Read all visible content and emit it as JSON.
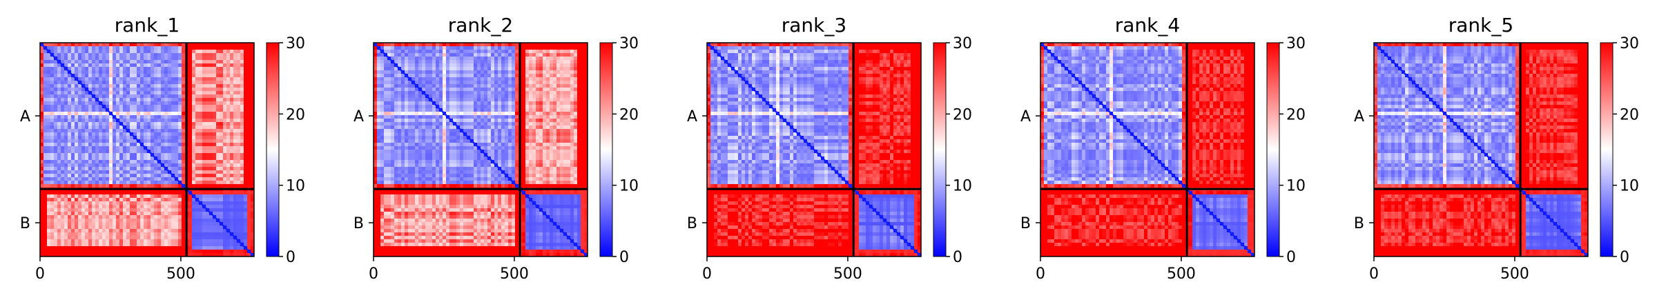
{
  "chart_data": [
    {
      "type": "heatmap",
      "title": "rank_1",
      "chains": [
        {
          "name": "A",
          "start": 0,
          "end": 520
        },
        {
          "name": "B",
          "start": 520,
          "end": 760
        }
      ],
      "x_ticks": [
        0,
        500
      ],
      "ylim": [
        0,
        760
      ],
      "colorbar": {
        "min": 0,
        "max": 30,
        "ticks": [
          0,
          10,
          20,
          30
        ],
        "colors": [
          "#0000ff",
          "#ffffff",
          "#ff0000"
        ]
      },
      "inter_chain_level": "medium"
    },
    {
      "type": "heatmap",
      "title": "rank_2",
      "chains": [
        {
          "name": "A",
          "start": 0,
          "end": 520
        },
        {
          "name": "B",
          "start": 520,
          "end": 760
        }
      ],
      "x_ticks": [
        0,
        500
      ],
      "ylim": [
        0,
        760
      ],
      "colorbar": {
        "min": 0,
        "max": 30,
        "ticks": [
          0,
          10,
          20,
          30
        ],
        "colors": [
          "#0000ff",
          "#ffffff",
          "#ff0000"
        ]
      },
      "inter_chain_level": "medium"
    },
    {
      "type": "heatmap",
      "title": "rank_3",
      "chains": [
        {
          "name": "A",
          "start": 0,
          "end": 520
        },
        {
          "name": "B",
          "start": 520,
          "end": 760
        }
      ],
      "x_ticks": [
        0,
        500
      ],
      "ylim": [
        0,
        760
      ],
      "colorbar": {
        "min": 0,
        "max": 30,
        "ticks": [
          0,
          10,
          20,
          30
        ],
        "colors": [
          "#0000ff",
          "#ffffff",
          "#ff0000"
        ]
      },
      "inter_chain_level": "high"
    },
    {
      "type": "heatmap",
      "title": "rank_4",
      "chains": [
        {
          "name": "A",
          "start": 0,
          "end": 520
        },
        {
          "name": "B",
          "start": 520,
          "end": 760
        }
      ],
      "x_ticks": [
        0,
        500
      ],
      "ylim": [
        0,
        760
      ],
      "colorbar": {
        "min": 0,
        "max": 30,
        "ticks": [
          0,
          10,
          20,
          30
        ],
        "colors": [
          "#0000ff",
          "#ffffff",
          "#ff0000"
        ]
      },
      "inter_chain_level": "high"
    },
    {
      "type": "heatmap",
      "title": "rank_5",
      "chains": [
        {
          "name": "A",
          "start": 0,
          "end": 520
        },
        {
          "name": "B",
          "start": 520,
          "end": 760
        }
      ],
      "x_ticks": [
        0,
        500
      ],
      "ylim": [
        0,
        760
      ],
      "colorbar": {
        "min": 0,
        "max": 30,
        "ticks": [
          0,
          10,
          20,
          30
        ],
        "colors": [
          "#0000ff",
          "#ffffff",
          "#ff0000"
        ]
      },
      "inter_chain_level": "high"
    }
  ]
}
